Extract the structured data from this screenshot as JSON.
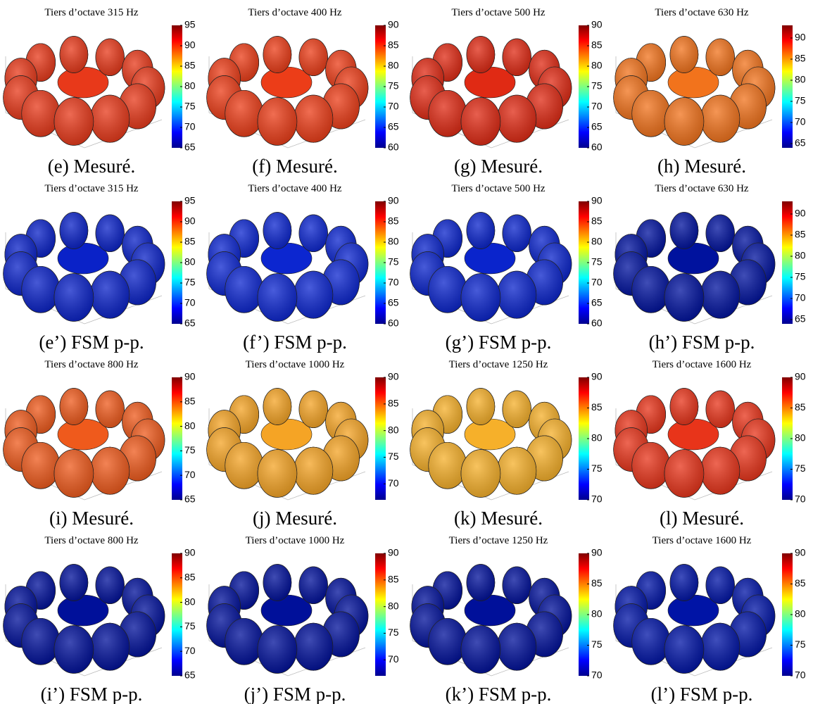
{
  "panels": [
    {
      "title": "Tiers d’octave 315 Hz",
      "caption": "(e) Mesuré.",
      "surface_color": "#e8391a",
      "colorbar": {
        "lim": [
          65,
          95
        ],
        "ticks": [
          65,
          70,
          75,
          80,
          85,
          90,
          95
        ]
      }
    },
    {
      "title": "Tiers d’octave 400 Hz",
      "caption": "(f) Mesuré.",
      "surface_color": "#ec3d18",
      "colorbar": {
        "lim": [
          60,
          90
        ],
        "ticks": [
          60,
          65,
          70,
          75,
          80,
          85,
          90
        ]
      }
    },
    {
      "title": "Tiers d’octave 500 Hz",
      "caption": "(g) Mesuré.",
      "surface_color": "#e02a14",
      "colorbar": {
        "lim": [
          60,
          90
        ],
        "ticks": [
          60,
          65,
          70,
          75,
          80,
          85,
          90
        ]
      }
    },
    {
      "title": "Tiers d’octave 630 Hz",
      "caption": "(h) Mesuré.",
      "surface_color": "#f2731c",
      "colorbar": {
        "lim": [
          64,
          93
        ],
        "ticks": [
          65,
          70,
          75,
          80,
          85,
          90
        ]
      }
    },
    {
      "title": "Tiers d’octave 315 Hz",
      "caption": "(e’) FSM p-p.",
      "surface_color": "#0a22c8",
      "colorbar": {
        "lim": [
          65,
          95
        ],
        "ticks": [
          65,
          70,
          75,
          80,
          85,
          90,
          95
        ]
      }
    },
    {
      "title": "Tiers d’octave 400 Hz",
      "caption": "(f’) FSM p-p.",
      "surface_color": "#0c26d0",
      "colorbar": {
        "lim": [
          60,
          90
        ],
        "ticks": [
          60,
          65,
          70,
          75,
          80,
          85,
          90
        ]
      }
    },
    {
      "title": "Tiers d’octave 500 Hz",
      "caption": "(g’) FSM p-p.",
      "surface_color": "#0a24cc",
      "colorbar": {
        "lim": [
          60,
          90
        ],
        "ticks": [
          60,
          65,
          70,
          75,
          80,
          85,
          90
        ]
      }
    },
    {
      "title": "Tiers d’octave 630 Hz",
      "caption": "(h’) FSM p-p.",
      "surface_color": "#00129e",
      "colorbar": {
        "lim": [
          64,
          93
        ],
        "ticks": [
          65,
          70,
          75,
          80,
          85,
          90
        ]
      }
    },
    {
      "title": "Tiers d’octave 800 Hz",
      "caption": "(i) Mesuré.",
      "surface_color": "#ef5a1c",
      "colorbar": {
        "lim": [
          65,
          90
        ],
        "ticks": [
          65,
          70,
          75,
          80,
          85,
          90
        ]
      }
    },
    {
      "title": "Tiers d’octave 1000 Hz",
      "caption": "(j) Mesuré.",
      "surface_color": "#f5a425",
      "colorbar": {
        "lim": [
          67,
          90
        ],
        "ticks": [
          70,
          75,
          80,
          85,
          90
        ]
      }
    },
    {
      "title": "Tiers d’octave 1250 Hz",
      "caption": "(k) Mesuré.",
      "surface_color": "#f6b02a",
      "colorbar": {
        "lim": [
          70,
          90
        ],
        "ticks": [
          70,
          75,
          80,
          85,
          90
        ]
      }
    },
    {
      "title": "Tiers d’octave 1600 Hz",
      "caption": "(l) Mesuré.",
      "surface_color": "#e8341a",
      "colorbar": {
        "lim": [
          70,
          90
        ],
        "ticks": [
          70,
          75,
          80,
          85,
          90
        ]
      }
    },
    {
      "title": "Tiers d’octave 800 Hz",
      "caption": "(i’) FSM p-p.",
      "surface_color": "#00109a",
      "colorbar": {
        "lim": [
          65,
          90
        ],
        "ticks": [
          65,
          70,
          75,
          80,
          85,
          90
        ]
      }
    },
    {
      "title": "Tiers d’octave 1000 Hz",
      "caption": "(j’) FSM p-p.",
      "surface_color": "#00109a",
      "colorbar": {
        "lim": [
          67,
          90
        ],
        "ticks": [
          70,
          75,
          80,
          85,
          90
        ]
      }
    },
    {
      "title": "Tiers d’octave 1250 Hz",
      "caption": "(k’) FSM p-p.",
      "surface_color": "#00109a",
      "colorbar": {
        "lim": [
          70,
          90
        ],
        "ticks": [
          70,
          75,
          80,
          85,
          90
        ]
      }
    },
    {
      "title": "Tiers d’octave 1600 Hz",
      "caption": "(l’) FSM p-p.",
      "surface_color": "#0014a6",
      "colorbar": {
        "lim": [
          70,
          90
        ],
        "ticks": [
          70,
          75,
          80,
          85,
          90
        ]
      }
    }
  ]
}
